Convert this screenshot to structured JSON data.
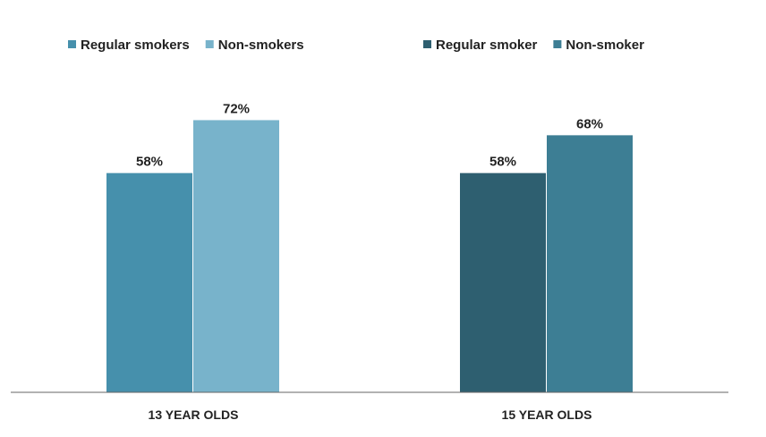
{
  "chart_data": [
    {
      "type": "bar",
      "categories": [
        "13 YEAR OLDS"
      ],
      "series": [
        {
          "name": "Regular smokers",
          "values": [
            58
          ],
          "color": "#4690AC"
        },
        {
          "name": "Non-smokers",
          "values": [
            72
          ],
          "color": "#78B3CB"
        }
      ],
      "value_labels": [
        "58%",
        "72%"
      ],
      "ylim": [
        0,
        100
      ],
      "legend_position": "top-left",
      "grid": false
    },
    {
      "type": "bar",
      "categories": [
        "15 YEAR OLDS"
      ],
      "series": [
        {
          "name": "Regular smoker",
          "values": [
            58
          ],
          "color": "#2E5F70"
        },
        {
          "name": "Non-smoker",
          "values": [
            68
          ],
          "color": "#3D7E94"
        }
      ],
      "value_labels": [
        "58%",
        "68%"
      ],
      "ylim": [
        0,
        100
      ],
      "legend_position": "top-right",
      "grid": false
    }
  ],
  "axis_color": "#666666"
}
